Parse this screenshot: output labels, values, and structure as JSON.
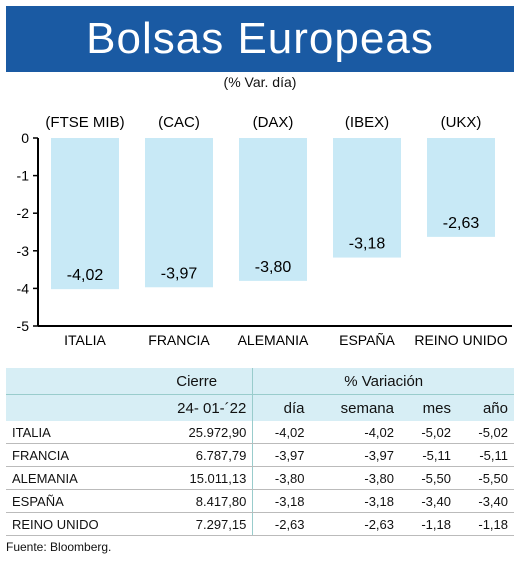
{
  "title": "Bolsas Europeas",
  "subtitle": "(% Var. día)",
  "chart_data": {
    "type": "bar",
    "categories": [
      "ITALIA",
      "FRANCIA",
      "ALEMANIA",
      "ESPAÑA",
      "REINO UNIDO"
    ],
    "indices": [
      "(FTSE MIB)",
      "(CAC)",
      "(DAX)",
      "(IBEX)",
      "(UKX)"
    ],
    "values": [
      -4.02,
      -3.97,
      -3.8,
      -3.18,
      -2.63
    ],
    "value_labels": [
      "-4,02",
      "-3,97",
      "-3,80",
      "-3,18",
      "-2,63"
    ],
    "ylim": [
      -5,
      0
    ],
    "yticks": [
      0,
      -1,
      -2,
      -3,
      -4,
      -5
    ],
    "bar_color": "#c8e9f6",
    "grid": false
  },
  "table": {
    "header": {
      "cierre": "Cierre",
      "variacion": "% Variación",
      "date": "24- 01-´22",
      "dia": "día",
      "semana": "semana",
      "mes": "mes",
      "ano": "año"
    },
    "rows": [
      {
        "country": "ITALIA",
        "cierre": "25.972,90",
        "dia": "-4,02",
        "semana": "-4,02",
        "mes": "-5,02",
        "ano": "-5,02"
      },
      {
        "country": "FRANCIA",
        "cierre": "6.787,79",
        "dia": "-3,97",
        "semana": "-3,97",
        "mes": "-5,11",
        "ano": "-5,11"
      },
      {
        "country": "ALEMANIA",
        "cierre": "15.011,13",
        "dia": "-3,80",
        "semana": "-3,80",
        "mes": "-5,50",
        "ano": "-5,50"
      },
      {
        "country": "ESPAÑA",
        "cierre": "8.417,80",
        "dia": "-3,18",
        "semana": "-3,18",
        "mes": "-3,40",
        "ano": "-3,40"
      },
      {
        "country": "REINO UNIDO",
        "cierre": "7.297,15",
        "dia": "-2,63",
        "semana": "-2,63",
        "mes": "-1,18",
        "ano": "-1,18"
      }
    ]
  },
  "source": "Fuente: Bloomberg.",
  "colors": {
    "banner": "#1a5aa3",
    "header_bg": "#d7eef5"
  }
}
